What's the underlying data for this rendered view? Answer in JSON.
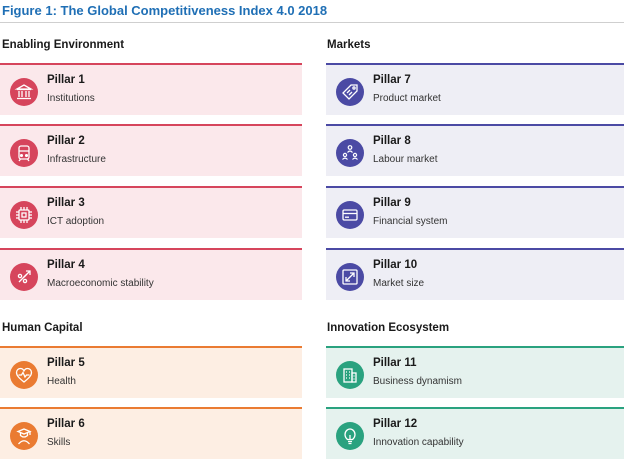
{
  "title": "Figure 1: The Global Competitiveness Index 4.0 2018",
  "sections": {
    "enabling": "Enabling Environment",
    "markets": "Markets",
    "human": "Human Capital",
    "innovation": "Innovation Ecosystem"
  },
  "pillars": [
    {
      "title": "Pillar 1",
      "name": "Institutions",
      "icon": "institution-icon"
    },
    {
      "title": "Pillar 2",
      "name": "Infrastructure",
      "icon": "train-icon"
    },
    {
      "title": "Pillar 3",
      "name": "ICT adoption",
      "icon": "chip-icon"
    },
    {
      "title": "Pillar 4",
      "name": "Macroeconomic stability",
      "icon": "percent-arrow-icon"
    },
    {
      "title": "Pillar 5",
      "name": "Health",
      "icon": "heartbeat-icon"
    },
    {
      "title": "Pillar 6",
      "name": "Skills",
      "icon": "graduate-icon"
    },
    {
      "title": "Pillar 7",
      "name": "Product market",
      "icon": "price-tag-icon"
    },
    {
      "title": "Pillar 8",
      "name": "Labour market",
      "icon": "people-network-icon"
    },
    {
      "title": "Pillar 9",
      "name": "Financial system",
      "icon": "credit-card-icon"
    },
    {
      "title": "Pillar 10",
      "name": "Market size",
      "icon": "expand-icon"
    },
    {
      "title": "Pillar 11",
      "name": "Business dynamism",
      "icon": "building-icon"
    },
    {
      "title": "Pillar 12",
      "name": "Innovation capability",
      "icon": "lightbulb-icon"
    }
  ],
  "colors": {
    "enabling": "#d6455c",
    "markets": "#4b4aa4",
    "human": "#ea7b32",
    "innovation": "#2aa27f",
    "title": "#1f6fb5"
  }
}
